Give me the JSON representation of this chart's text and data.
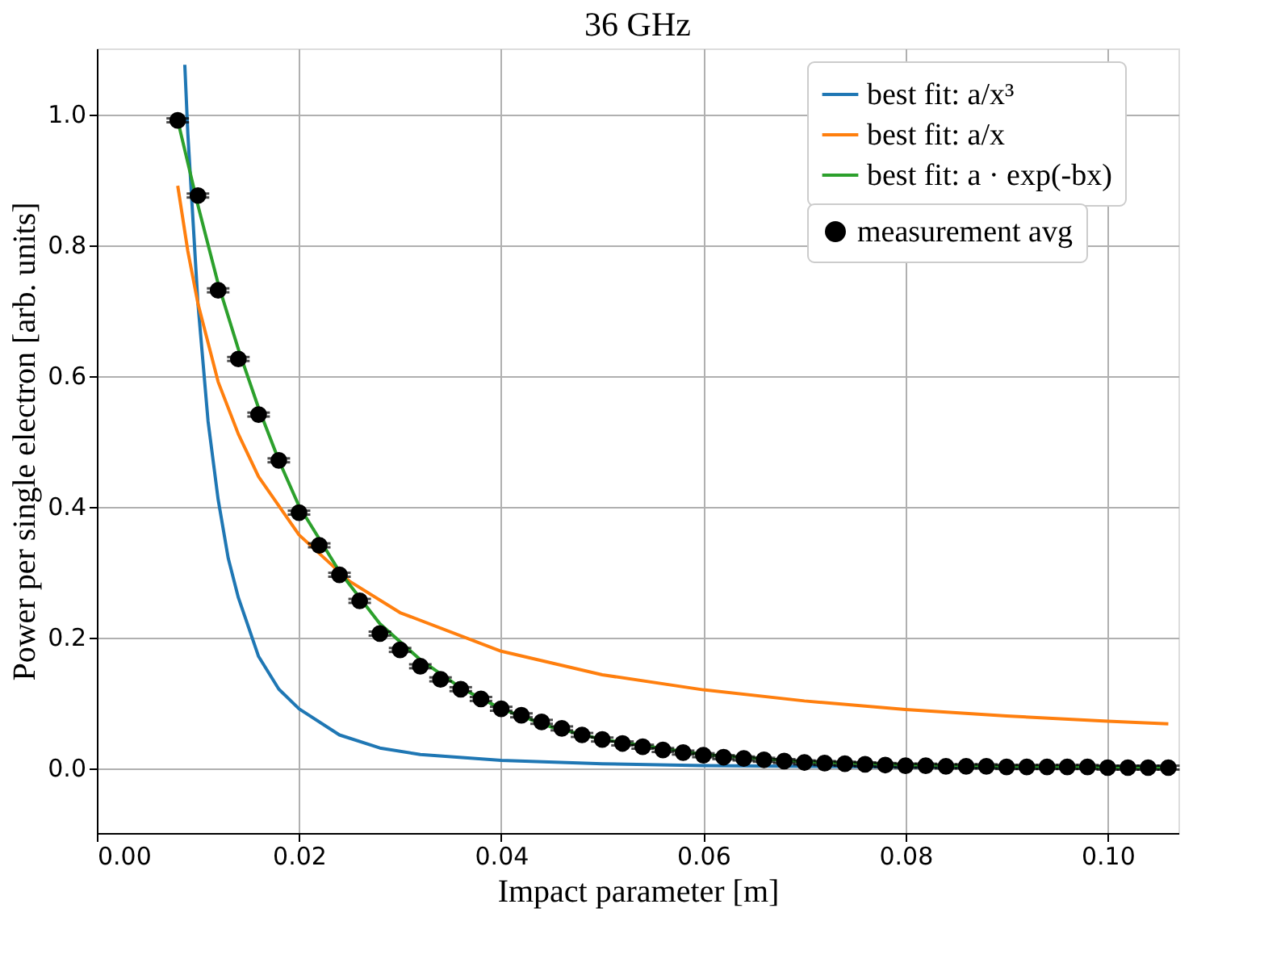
{
  "chart_data": {
    "type": "line",
    "title": "36 GHz",
    "xlabel": "Impact parameter [m]",
    "ylabel": "Power per single electron [arb. units]",
    "xlim": [
      0,
      0.107
    ],
    "ylim": [
      -0.1,
      1.1
    ],
    "xticks": [
      {
        "value": 0,
        "label": "0.00"
      },
      {
        "value": 0.02,
        "label": "0.02"
      },
      {
        "value": 0.04,
        "label": "0.04"
      },
      {
        "value": 0.06,
        "label": "0.06"
      },
      {
        "value": 0.08,
        "label": "0.08"
      },
      {
        "value": 0.1,
        "label": "0.10"
      }
    ],
    "yticks": [
      {
        "value": 0,
        "label": "0.0"
      },
      {
        "value": 0.2,
        "label": "0.2"
      },
      {
        "value": 0.4,
        "label": "0.4"
      },
      {
        "value": 0.6,
        "label": "0.6"
      },
      {
        "value": 0.8,
        "label": "0.8"
      },
      {
        "value": 1,
        "label": "1.0"
      }
    ],
    "grid": true,
    "legend": "top right",
    "series": [
      {
        "name": "best fit: a/x³",
        "color": "#1f77b4",
        "x": [
          0.0087,
          0.009,
          0.01,
          0.011,
          0.012,
          0.013,
          0.014,
          0.016,
          0.018,
          0.02,
          0.024,
          0.028,
          0.032,
          0.04,
          0.05,
          0.06,
          0.08,
          0.106
        ],
        "values": [
          1.075,
          0.97,
          0.71,
          0.53,
          0.41,
          0.32,
          0.26,
          0.17,
          0.12,
          0.09,
          0.05,
          0.03,
          0.02,
          0.011,
          0.006,
          0.003,
          0.001,
          0.001
        ]
      },
      {
        "name": "best fit: a/x",
        "color": "#ff7f0e",
        "x": [
          0.008,
          0.009,
          0.01,
          0.012,
          0.014,
          0.016,
          0.02,
          0.025,
          0.03,
          0.04,
          0.05,
          0.06,
          0.07,
          0.08,
          0.09,
          0.1,
          0.106
        ],
        "values": [
          0.89,
          0.79,
          0.71,
          0.59,
          0.51,
          0.445,
          0.356,
          0.285,
          0.237,
          0.178,
          0.142,
          0.119,
          0.102,
          0.089,
          0.079,
          0.071,
          0.067
        ]
      },
      {
        "name": "best fit: a · exp(-bx)",
        "color": "#2ca02c",
        "x": [
          0.008,
          0.01,
          0.012,
          0.014,
          0.016,
          0.018,
          0.02,
          0.024,
          0.028,
          0.032,
          0.036,
          0.04,
          0.045,
          0.05,
          0.06,
          0.07,
          0.08,
          0.09,
          0.106
        ],
        "values": [
          0.99,
          0.86,
          0.74,
          0.64,
          0.55,
          0.47,
          0.4,
          0.3,
          0.22,
          0.165,
          0.122,
          0.09,
          0.062,
          0.043,
          0.02,
          0.009,
          0.004,
          0.002,
          0
        ]
      },
      {
        "name": "measurement avg",
        "type": "scatter",
        "color": "#000000",
        "marker": "circle",
        "x": [
          0.008,
          0.01,
          0.012,
          0.014,
          0.016,
          0.018,
          0.02,
          0.022,
          0.024,
          0.026,
          0.028,
          0.03,
          0.032,
          0.034,
          0.036,
          0.038,
          0.04,
          0.042,
          0.044,
          0.046,
          0.048,
          0.05,
          0.052,
          0.054,
          0.056,
          0.058,
          0.06,
          0.062,
          0.064,
          0.066,
          0.068,
          0.07,
          0.072,
          0.074,
          0.076,
          0.078,
          0.08,
          0.082,
          0.084,
          0.086,
          0.088,
          0.09,
          0.092,
          0.094,
          0.096,
          0.098,
          0.1,
          0.102,
          0.104,
          0.106
        ],
        "values": [
          0.99,
          0.875,
          0.73,
          0.625,
          0.54,
          0.47,
          0.39,
          0.34,
          0.295,
          0.255,
          0.205,
          0.18,
          0.155,
          0.135,
          0.12,
          0.105,
          0.09,
          0.08,
          0.07,
          0.06,
          0.05,
          0.043,
          0.037,
          0.032,
          0.027,
          0.023,
          0.019,
          0.016,
          0.014,
          0.012,
          0.01,
          0.008,
          0.007,
          0.006,
          0.005,
          0.004,
          0.003,
          0.003,
          0.002,
          0.002,
          0.002,
          0.001,
          0.001,
          0.001,
          0.001,
          0.001,
          0,
          0,
          0,
          0
        ],
        "errors": [
          0.003,
          0.003,
          0.003,
          0.003,
          0.003,
          0.003,
          0.003,
          0.003,
          0.003,
          0.003,
          0.003,
          0.003,
          0.003,
          0.003,
          0.003,
          0.003,
          0.003,
          0.003,
          0.003,
          0.003,
          0.003,
          0.003,
          0.003,
          0.003,
          0.003,
          0.003,
          0.003,
          0.003,
          0.003,
          0.003,
          0.003,
          0.003,
          0.003,
          0.003,
          0.003,
          0.003,
          0.003,
          0.003,
          0.003,
          0.003,
          0.003,
          0.003,
          0.003,
          0.003,
          0.003,
          0.003,
          0.003,
          0.003,
          0.003,
          0.003
        ]
      }
    ]
  }
}
